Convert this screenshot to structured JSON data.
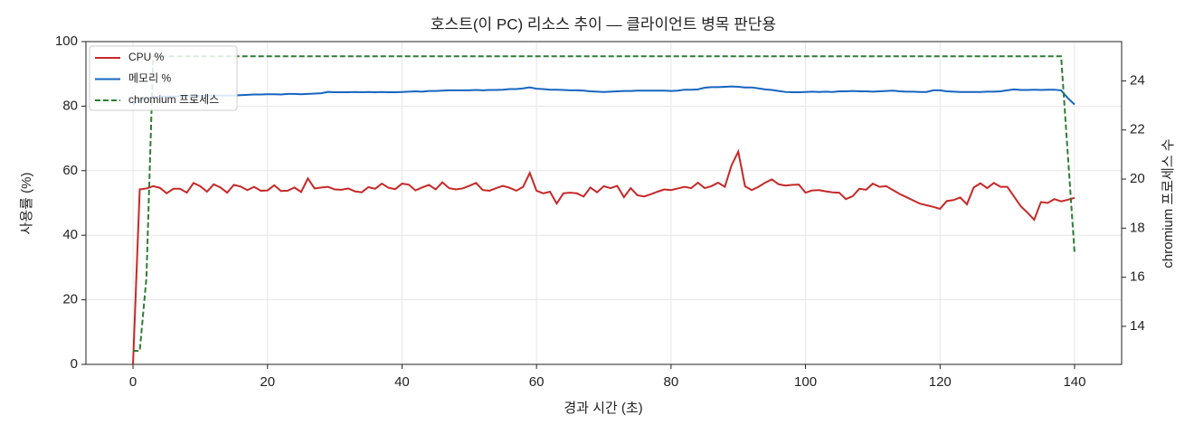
{
  "chart_data": {
    "type": "line",
    "title": "호스트(이 PC) 리소스 추이 — 클라이언트 병목 판단용",
    "x_label": "경과 시간 (초)",
    "y_label": "사용률 (%)",
    "y2_label": "chromium 프로세스 수",
    "x": [
      0,
      1,
      2,
      3,
      4,
      5,
      6,
      7,
      8,
      9,
      10,
      11,
      12,
      13,
      14,
      15,
      16,
      17,
      18,
      19,
      20,
      21,
      22,
      23,
      24,
      25,
      26,
      27,
      28,
      29,
      30,
      31,
      32,
      33,
      34,
      35,
      36,
      37,
      38,
      39,
      40,
      41,
      42,
      43,
      44,
      45,
      46,
      47,
      48,
      49,
      50,
      51,
      52,
      53,
      54,
      55,
      56,
      57,
      58,
      59,
      60,
      61,
      62,
      63,
      64,
      65,
      66,
      67,
      68,
      69,
      70,
      71,
      72,
      73,
      74,
      75,
      76,
      77,
      78,
      79,
      80,
      81,
      82,
      83,
      84,
      85,
      86,
      87,
      88,
      89,
      90,
      91,
      92,
      93,
      94,
      95,
      96,
      97,
      98,
      99,
      100,
      101,
      102,
      103,
      104,
      105,
      106,
      107,
      108,
      109,
      110,
      111,
      112,
      113,
      114,
      115,
      116,
      117,
      118,
      119,
      120,
      121,
      122,
      123,
      124,
      125,
      126,
      127,
      128,
      129,
      130,
      131,
      132,
      133,
      134,
      135,
      136,
      137,
      138,
      139,
      140
    ],
    "series": [
      {
        "name": "CPU %",
        "color": "#c62828",
        "values": [
          0,
          54.2,
          54.5,
          55.2,
          54.7,
          53,
          54.4,
          54.4,
          53.2,
          56.2,
          55.2,
          53.5,
          55.8,
          54.8,
          53.2,
          55.6,
          55.1,
          54,
          55,
          53.8,
          53.9,
          55.5,
          53.7,
          53.8,
          54.8,
          53.4,
          57.6,
          54.5,
          54.8,
          55,
          54.2,
          54.1,
          54.5,
          53.6,
          53.3,
          54.9,
          54.4,
          56,
          54.7,
          54.3,
          56,
          55.7,
          53.9,
          54.8,
          55.6,
          54.2,
          56.4,
          54.6,
          54.2,
          54.5,
          55.3,
          56.2,
          54,
          53.8,
          54.6,
          55.3,
          54.7,
          53.8,
          55,
          59.3,
          53.8,
          53,
          53.5,
          49.8,
          53,
          53.2,
          53,
          52,
          54.8,
          53.3,
          55.2,
          54.6,
          55.3,
          51.8,
          54.6,
          52.4,
          52,
          52.7,
          53.5,
          54.2,
          54,
          54.5,
          55,
          54.6,
          56.3,
          54.6,
          55.2,
          56.3,
          55,
          61.7,
          65.9,
          55.2,
          54,
          55,
          56.3,
          57.3,
          55.8,
          55.4,
          55.6,
          55.7,
          53.2,
          53.9,
          54,
          53.6,
          53.3,
          53.2,
          51.2,
          52.1,
          54.4,
          54.1,
          56,
          55,
          55.2,
          54,
          52.8,
          51.8,
          50.8,
          49.8,
          49.3,
          48.8,
          48.2,
          50.6,
          50.9,
          51.7,
          49.6,
          54.8,
          56.1,
          54.6,
          56.2,
          55,
          55,
          52,
          49,
          47,
          44.8,
          50.3,
          50,
          51.2,
          50.5,
          51,
          51.6
        ]
      },
      {
        "name": "메모리 %",
        "color": "#1565c0",
        "values": [
          80.5,
          82,
          82.5,
          82.8,
          83,
          83,
          83,
          83.1,
          83.1,
          83.2,
          83.2,
          83.2,
          83.3,
          83.3,
          83.3,
          83.3,
          83.4,
          83.5,
          83.6,
          83.6,
          83.7,
          83.7,
          83.6,
          83.8,
          83.8,
          83.7,
          83.8,
          83.9,
          84,
          84.4,
          84.3,
          84.3,
          84.3,
          84.4,
          84.3,
          84.4,
          84.3,
          84.4,
          84.3,
          84.3,
          84.4,
          84.5,
          84.6,
          84.5,
          84.7,
          84.7,
          84.8,
          84.9,
          84.9,
          84.9,
          84.9,
          85,
          84.9,
          85,
          85,
          85.1,
          85.3,
          85.3,
          85.5,
          85.8,
          85.4,
          85.3,
          85.1,
          85.1,
          85,
          84.9,
          84.9,
          84.8,
          84.6,
          84.5,
          84.4,
          84.5,
          84.6,
          84.7,
          84.7,
          84.8,
          84.8,
          84.8,
          84.8,
          84.8,
          84.7,
          84.8,
          85.1,
          85.1,
          85.2,
          85.7,
          85.9,
          85.9,
          86,
          86.1,
          86,
          85.8,
          85.8,
          85.5,
          85.2,
          85,
          84.7,
          84.4,
          84.3,
          84.3,
          84.4,
          84.5,
          84.4,
          84.5,
          84.4,
          84.6,
          84.6,
          84.7,
          84.6,
          84.6,
          84.5,
          84.6,
          84.7,
          84.8,
          84.6,
          84.5,
          84.5,
          84.4,
          84.4,
          84.9,
          84.9,
          84.6,
          84.5,
          84.4,
          84.4,
          84.4,
          84.4,
          84.5,
          84.5,
          84.6,
          84.9,
          85.2,
          85,
          85,
          85.1,
          85,
          85.1,
          85.1,
          84.9,
          82.5,
          80.5
        ]
      },
      {
        "name": "chromium 프로세스",
        "color": "#2e7d32",
        "dashed": true,
        "axis": "y2",
        "values": [
          13,
          13,
          16,
          25,
          25,
          25,
          25,
          25,
          25,
          25,
          25,
          25,
          25,
          25,
          25,
          25,
          25,
          25,
          25,
          25,
          25,
          25,
          25,
          25,
          25,
          25,
          25,
          25,
          25,
          25,
          25,
          25,
          25,
          25,
          25,
          25,
          25,
          25,
          25,
          25,
          25,
          25,
          25,
          25,
          25,
          25,
          25,
          25,
          25,
          25,
          25,
          25,
          25,
          25,
          25,
          25,
          25,
          25,
          25,
          25,
          25,
          25,
          25,
          25,
          25,
          25,
          25,
          25,
          25,
          25,
          25,
          25,
          25,
          25,
          25,
          25,
          25,
          25,
          25,
          25,
          25,
          25,
          25,
          25,
          25,
          25,
          25,
          25,
          25,
          25,
          25,
          25,
          25,
          25,
          25,
          25,
          25,
          25,
          25,
          25,
          25,
          25,
          25,
          25,
          25,
          25,
          25,
          25,
          25,
          25,
          25,
          25,
          25,
          25,
          25,
          25,
          25,
          25,
          25,
          25,
          25,
          25,
          25,
          25,
          25,
          25,
          25,
          25,
          25,
          25,
          25,
          25,
          25,
          25,
          25,
          25,
          25,
          25,
          25,
          21,
          17
        ]
      }
    ],
    "xlim": [
      -7,
      147
    ],
    "xticks": [
      0,
      20,
      40,
      60,
      80,
      100,
      120,
      140
    ],
    "ylim": [
      0,
      100
    ],
    "yticks": [
      0,
      20,
      40,
      60,
      80,
      100
    ],
    "y2lim": [
      12.45,
      25.6
    ],
    "y2ticks": [
      14,
      16,
      18,
      20,
      22,
      24
    ],
    "grid": true,
    "legend": "upper left"
  }
}
